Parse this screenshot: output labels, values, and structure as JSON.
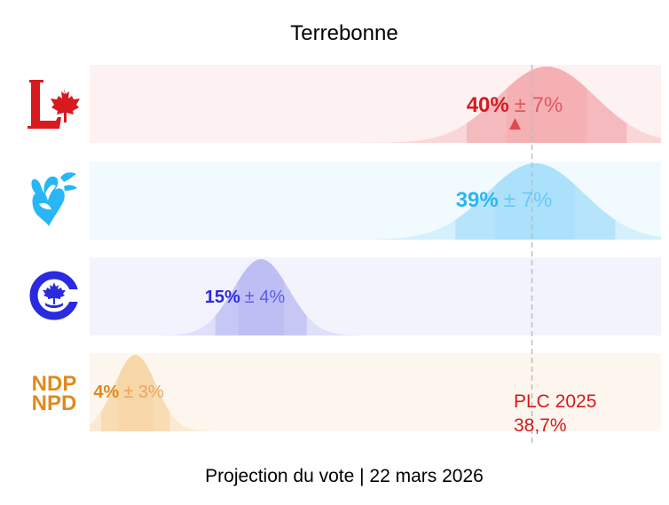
{
  "chart_data": {
    "type": "area",
    "title": "Terrebonne",
    "subtitle": "Projection du vote | 22 mars 2026",
    "xlim": [
      0,
      50
    ],
    "grid": false,
    "series": [
      {
        "party": "PLC",
        "logo": "liberal-logo",
        "mean": 40,
        "margin": 7,
        "mean_label": "40%",
        "margin_label": "± 7%",
        "color": "#d71920",
        "light": "#f3a3a7",
        "trend": "up"
      },
      {
        "party": "BQ",
        "logo": "bloc-logo",
        "mean": 39,
        "margin": 7,
        "mean_label": "39%",
        "margin_label": "± 7%",
        "color": "#29b6f6",
        "light": "#9ddcfa"
      },
      {
        "party": "PCC",
        "logo": "conservative-logo",
        "mean": 15,
        "margin": 4,
        "mean_label": "15%",
        "margin_label": "± 4%",
        "color": "#2a2adf",
        "light": "#b3b3f3"
      },
      {
        "party": "NPD",
        "logo": "ndp-logo",
        "mean": 4,
        "margin": 3,
        "mean_label": "4%",
        "margin_label": "± 3%",
        "color": "#e08a1e",
        "light": "#f6cf9a"
      }
    ],
    "reference": {
      "value": 38.7,
      "label_line1": "PLC 2025",
      "label_line2": "38,7%",
      "color": "#d71920"
    }
  },
  "logos": {
    "ndp_line1": "NDP",
    "ndp_line2": "NPD"
  }
}
